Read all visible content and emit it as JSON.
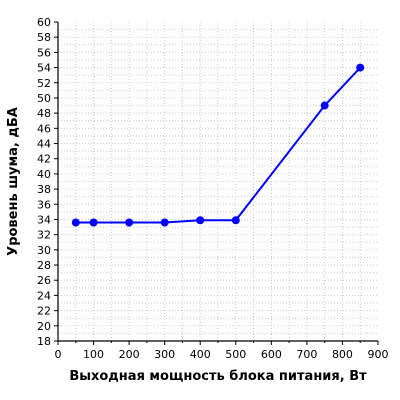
{
  "chart_data": {
    "type": "line",
    "title": "",
    "xlabel": "Выходная мощность блока питания, Вт",
    "ylabel": "Уровень шума, дБА",
    "xlim": [
      0,
      900
    ],
    "ylim": [
      18,
      60
    ],
    "x_ticks": [
      0,
      100,
      200,
      300,
      400,
      500,
      600,
      700,
      800,
      900
    ],
    "y_ticks": [
      18,
      20,
      22,
      24,
      26,
      28,
      30,
      32,
      34,
      36,
      38,
      40,
      42,
      44,
      46,
      48,
      50,
      52,
      54,
      56,
      58,
      60
    ],
    "grid": true,
    "legend": "none",
    "series": [
      {
        "color": "#0000ff",
        "points": [
          {
            "x": 50,
            "y": 33.6
          },
          {
            "x": 100,
            "y": 33.6
          },
          {
            "x": 200,
            "y": 33.6
          },
          {
            "x": 300,
            "y": 33.6
          },
          {
            "x": 400,
            "y": 33.9
          },
          {
            "x": 500,
            "y": 33.9
          },
          {
            "x": 750,
            "y": 49.0
          },
          {
            "x": 850,
            "y": 54.0
          }
        ]
      }
    ]
  }
}
